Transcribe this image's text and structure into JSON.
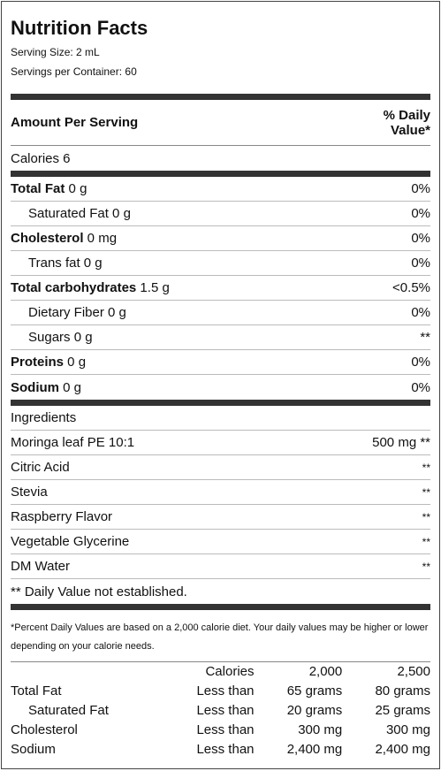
{
  "title": "Nutrition Facts",
  "serving_size": "Serving Size: 2 mL",
  "servings_per_container": "Servings per Container: 60",
  "amount_per_serving": "Amount Per Serving",
  "daily_value_header_line1": "% Daily",
  "daily_value_header_line2": "Value*",
  "calories": "Calories 6",
  "nutrients": [
    {
      "name": "Total Fat",
      "amount": " 0 g",
      "dv": "0%"
    },
    {
      "name": "Saturated Fat 0 g",
      "amount": "",
      "dv": "0%"
    },
    {
      "name": "Cholesterol",
      "amount": " 0 mg",
      "dv": "0%"
    },
    {
      "name": "Trans fat 0 g",
      "amount": "",
      "dv": "0%"
    },
    {
      "name": "Total carbohydrates",
      "amount": " 1.5 g",
      "dv": "<0.5%"
    },
    {
      "name": "Dietary Fiber  0 g",
      "amount": "",
      "dv": "0%"
    },
    {
      "name": "Sugars  0 g",
      "amount": "",
      "dv": "**"
    },
    {
      "name": "Proteins",
      "amount": " 0 g",
      "dv": "0%"
    },
    {
      "name": "Sodium",
      "amount": " 0 g",
      "dv": "0%"
    }
  ],
  "ingredients_header": "Ingredients",
  "ingredients": [
    {
      "name": "Moringa leaf PE 10:1",
      "value": "500 mg **"
    },
    {
      "name": "Citric Acid",
      "value": "**"
    },
    {
      "name": "Stevia",
      "value": "**"
    },
    {
      "name": "Raspberry Flavor",
      "value": "**"
    },
    {
      "name": "Vegetable Glycerine",
      "value": "**"
    },
    {
      "name": "DM Water",
      "value": "**"
    }
  ],
  "dv_note": "** Daily Value not established.",
  "footnote": "*Percent Daily Values are based on a 2,000 calorie diet. Your daily values may be higher or lower depending on your calorie needs.",
  "reference": {
    "header": [
      "",
      "Calories",
      "2,000",
      "2,500"
    ],
    "rows": [
      [
        "Total Fat",
        "Less than",
        "65 grams",
        "80 grams"
      ],
      [
        "Saturated Fat",
        "Less than",
        "20 grams",
        "25 grams"
      ],
      [
        "Cholesterol",
        "Less than",
        "300 mg",
        "300 mg"
      ],
      [
        "Sodium",
        "Less than",
        "2,400 mg",
        "2,400 mg"
      ]
    ]
  }
}
